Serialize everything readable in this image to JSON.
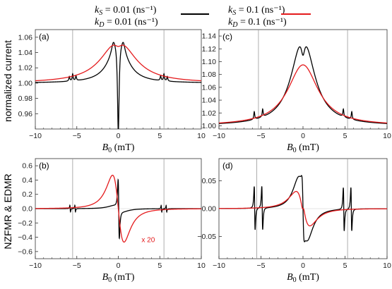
{
  "legend": [
    {
      "line1": "k_S = 0.01 (ns⁻¹)",
      "line2": "k_D = 0.01 (ns⁻¹)",
      "color": "#000000"
    },
    {
      "line1": "k_S = 0.1 (ns⁻¹)",
      "line2": "k_D = 0.1 (ns⁻¹)",
      "color": "#e41a1c"
    }
  ],
  "ylabels": {
    "top": "normalized current",
    "bottom": "NZFMR & EDMR"
  },
  "chart_data": [
    {
      "type": "line",
      "panel": "(a)",
      "xlabel": "B₀ (mT)",
      "xlim": [
        -10,
        10
      ],
      "ylim": [
        0.94,
        1.07
      ],
      "xticks": [
        -10,
        -5,
        0,
        5,
        10
      ],
      "yticks": [
        0.96,
        0.98,
        1.0,
        1.02,
        1.04,
        1.06
      ],
      "vlines": [
        -5.5,
        5.5
      ],
      "series": [
        {
          "color": "#000000",
          "model": "a_black"
        },
        {
          "color": "#e41a1c",
          "model": "a_red"
        }
      ]
    },
    {
      "type": "line",
      "panel": "(b)",
      "xlabel": "B₀ (mT)",
      "xlim": [
        -10,
        10
      ],
      "ylim": [
        -0.7,
        0.7
      ],
      "xticks": [
        -10,
        -5,
        0,
        5,
        10
      ],
      "yticks": [
        -0.6,
        -0.4,
        -0.2,
        0.0,
        0.2,
        0.4,
        0.6
      ],
      "vlines": [
        -5.5,
        5.5
      ],
      "zero_line": true,
      "annotation": "x 20",
      "series": [
        {
          "color": "#000000",
          "model": "b_black"
        },
        {
          "color": "#e41a1c",
          "model": "b_red"
        }
      ]
    },
    {
      "type": "line",
      "panel": "(c)",
      "xlabel": "B₀ (mT)",
      "xlim": [
        -10,
        10
      ],
      "ylim": [
        0.995,
        1.15
      ],
      "xticks": [
        -10,
        -5,
        0,
        5,
        10
      ],
      "yticks": [
        1.0,
        1.02,
        1.04,
        1.06,
        1.08,
        1.1,
        1.12,
        1.14
      ],
      "vlines": [
        -5.3,
        5.3
      ],
      "series": [
        {
          "color": "#000000",
          "model": "c_black"
        },
        {
          "color": "#e41a1c",
          "model": "c_red"
        }
      ]
    },
    {
      "type": "line",
      "panel": "(d)",
      "xlabel": "B₀ (mT)",
      "xlim": [
        -10,
        10
      ],
      "ylim": [
        -0.09,
        0.09
      ],
      "xticks": [
        -10,
        -5,
        0,
        5,
        10
      ],
      "yticks": [
        -0.05,
        0.0,
        0.05
      ],
      "vlines": [
        -5.5,
        5.3
      ],
      "zero_line": true,
      "series": [
        {
          "color": "#000000",
          "model": "d_black"
        },
        {
          "color": "#e41a1c",
          "model": "d_red"
        }
      ]
    }
  ]
}
